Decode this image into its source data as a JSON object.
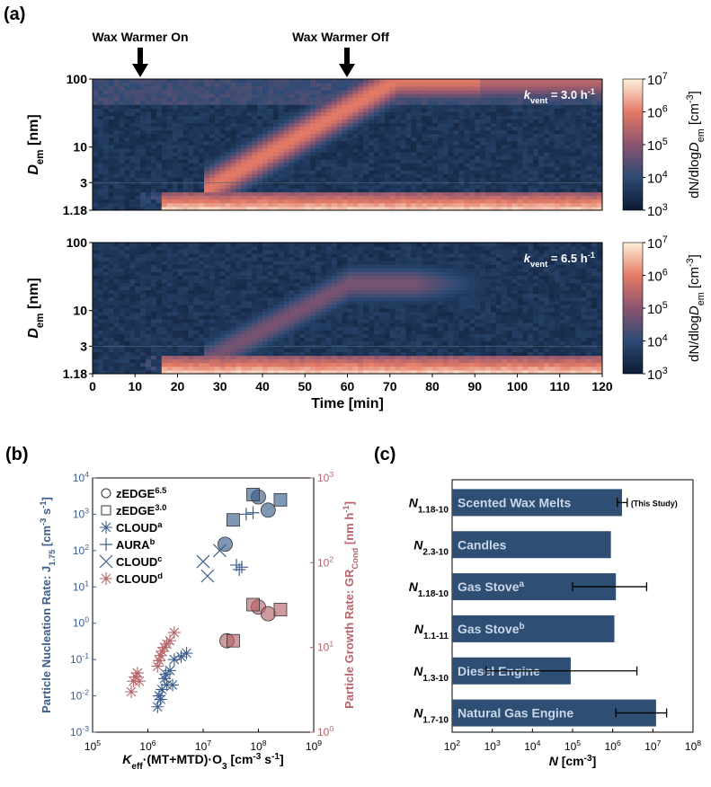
{
  "panel_labels": {
    "a": "(a)",
    "b": "(b)",
    "c": "(c)"
  },
  "annotations": {
    "on": "Wax Warmer On",
    "off": "Wax Warmer Off"
  },
  "colors": {
    "nucleation_blue": "#3b5e8c",
    "growth_red": "#b5656a",
    "bar_fill": "#2e4e73",
    "bar_label": "#c9d7e8"
  },
  "chart_data": [
    {
      "type": "heatmap",
      "panel": "a-top",
      "annotation": {
        "k": "k",
        "sub": "vent",
        "rest": " = 3.0 h",
        "sup": "-1"
      },
      "x": {
        "label": "Time [min]",
        "ticks": [
          0,
          10,
          20,
          30,
          40,
          50,
          60,
          70,
          80,
          90,
          100,
          110,
          120
        ],
        "range": [
          0,
          120
        ]
      },
      "y": {
        "label_main": "D",
        "label_sub": "em",
        "label_unit": "[nm]",
        "ticks": [
          "1.18",
          "3",
          "10",
          "100"
        ],
        "range": [
          1.18,
          100
        ],
        "scale": "log"
      },
      "colorbar": {
        "label_pre": "dN/dlog",
        "label_d": "D",
        "label_sub": "em",
        "label_unit": "[cm",
        "label_unit_sup": "-3",
        "label_unit_end": "]",
        "tick_exponents": [
          "3",
          "4",
          "5",
          "6",
          "7"
        ],
        "range": [
          1000,
          10000000
        ],
        "scale": "log"
      },
      "events_min": [
        11,
        60
      ],
      "kvent": 3.0
    },
    {
      "type": "heatmap",
      "panel": "a-bottom",
      "annotation": {
        "k": "k",
        "sub": "vent",
        "rest": " = 6.5 h",
        "sup": "-1"
      },
      "x": {
        "label": "Time [min]",
        "ticks": [
          0,
          10,
          20,
          30,
          40,
          50,
          60,
          70,
          80,
          90,
          100,
          110,
          120
        ],
        "range": [
          0,
          120
        ]
      },
      "y": {
        "label_main": "D",
        "label_sub": "em",
        "label_unit": "[nm]",
        "ticks": [
          "1.18",
          "3",
          "10",
          "100"
        ],
        "range": [
          1.18,
          100
        ],
        "scale": "log"
      },
      "colorbar": {
        "label_pre": "dN/dlog",
        "label_d": "D",
        "label_sub": "em",
        "label_unit": "[cm",
        "label_unit_sup": "-3",
        "label_unit_end": "]",
        "tick_exponents": [
          "3",
          "4",
          "5",
          "6",
          "7"
        ],
        "range": [
          1000,
          10000000
        ],
        "scale": "log"
      },
      "events_min": [
        11,
        60
      ],
      "kvent": 6.5
    },
    {
      "type": "scatter",
      "panel": "b",
      "xlabel": {
        "k": "K",
        "sub": "eff",
        "mid": "·(MT+MTD)·O",
        "sub2": "3",
        "unit": " [cm",
        "usup": "-3",
        "u2": " s",
        "usup2": "-1",
        "end": "]"
      },
      "ylabel_left": {
        "pre": "Particle Nucleation Rate: J",
        "sub": "1.75",
        "unit": " [cm",
        "usup": "-3",
        "u2": " s",
        "usup2": "-1",
        "end": "]"
      },
      "ylabel_right": {
        "pre": "Particle Growth Rate: GR",
        "sub": "Cond",
        "unit": " [nm h",
        "usup": "-1",
        "end": "]"
      },
      "xlim": [
        100000,
        1000000000
      ],
      "ylim_left": [
        0.001,
        10000
      ],
      "ylim_right": [
        1,
        1000
      ],
      "x_tick_exponents": [
        "5",
        "6",
        "7",
        "8",
        "9"
      ],
      "yl_tick_exponents": [
        "-3",
        "-2",
        "-1",
        "0",
        "1",
        "2",
        "3",
        "4"
      ],
      "yr_tick_exponents": [
        "0",
        "1",
        "2",
        "3"
      ],
      "legend": [
        {
          "symbol": "circle",
          "name": "zEDGE",
          "sup": "6.5"
        },
        {
          "symbol": "square",
          "name": "zEDGE",
          "sup": "3.0"
        },
        {
          "symbol": "asterisk",
          "name": "CLOUD",
          "sup": "a"
        },
        {
          "symbol": "plus",
          "name": "AURA",
          "sup": "b"
        },
        {
          "symbol": "cross",
          "name": "CLOUD",
          "sup": "c"
        },
        {
          "symbol": "asterisk-red",
          "name": "CLOUD",
          "sup": "d"
        }
      ],
      "series": [
        {
          "name": "zEDGE 6.5 J",
          "axis": "left",
          "symbol": "circle",
          "color": "#3b5e8c",
          "points": [
            [
              25000000,
              150
            ],
            [
              100000000,
              3000
            ],
            [
              150000000,
              1300
            ]
          ]
        },
        {
          "name": "zEDGE 3.0 J",
          "axis": "left",
          "symbol": "square",
          "color": "#3b5e8c",
          "points": [
            [
              35000000,
              700
            ],
            [
              80000000,
              3500
            ],
            [
              250000000,
              2500
            ]
          ]
        },
        {
          "name": "zEDGE 6.5 GR",
          "axis": "right",
          "symbol": "circle",
          "color": "#b5656a",
          "points": [
            [
              27000000,
              12
            ],
            [
              100000000,
              30
            ],
            [
              150000000,
              25
            ]
          ]
        },
        {
          "name": "zEDGE 3.0 GR",
          "axis": "right",
          "symbol": "square",
          "color": "#b5656a",
          "points": [
            [
              35000000,
              12
            ],
            [
              80000000,
              32
            ],
            [
              250000000,
              28
            ]
          ]
        },
        {
          "name": "CLOUDa",
          "axis": "left",
          "symbol": "asterisk",
          "color": "#3b5e8c",
          "points": [
            [
              1500000,
              0.005
            ],
            [
              1600000,
              0.01
            ],
            [
              1800000,
              0.015
            ],
            [
              2000000,
              0.03
            ],
            [
              2200000,
              0.02
            ],
            [
              2500000,
              0.05
            ],
            [
              3000000,
              0.1
            ],
            [
              4000000,
              0.12
            ],
            [
              5000000,
              0.15
            ],
            [
              1700000,
              0.008
            ],
            [
              2100000,
              0.04
            ],
            [
              2800000,
              0.02
            ]
          ]
        },
        {
          "name": "AURAb",
          "axis": "left",
          "symbol": "plus",
          "color": "#3b5e8c",
          "points": [
            [
              40000000,
              40
            ],
            [
              45000000,
              30
            ],
            [
              50000000,
              35
            ],
            [
              60000000,
              1000
            ],
            [
              80000000,
              1100
            ]
          ]
        },
        {
          "name": "CLOUDc",
          "axis": "left",
          "symbol": "cross",
          "color": "#3b5e8c",
          "points": [
            [
              10000000,
              50
            ],
            [
              12000000,
              20
            ],
            [
              20000000,
              100
            ]
          ]
        },
        {
          "name": "CLOUDd",
          "axis": "right",
          "symbol": "asterisk",
          "color": "#b5656a",
          "points": [
            [
              500000,
              3
            ],
            [
              550000,
              4
            ],
            [
              600000,
              4.5
            ],
            [
              650000,
              5
            ],
            [
              700000,
              4
            ],
            [
              1500000,
              6
            ],
            [
              1600000,
              7
            ],
            [
              1700000,
              8
            ],
            [
              1800000,
              9
            ],
            [
              2000000,
              10
            ],
            [
              2200000,
              11
            ],
            [
              2500000,
              12
            ],
            [
              3000000,
              15
            ]
          ]
        }
      ]
    },
    {
      "type": "bar",
      "panel": "c",
      "orientation": "horizontal",
      "xlabel": {
        "n": "N",
        "unit": " [cm",
        "usup": "-3",
        "end": "]"
      },
      "xlim": [
        100,
        100000000
      ],
      "x_tick_exponents": [
        "2",
        "3",
        "4",
        "5",
        "6",
        "7",
        "8"
      ],
      "this_study_note": "(This Study)",
      "bars": [
        {
          "tag": "N",
          "sub": "1.18-10",
          "label": "Scented Wax Melts",
          "sup": "",
          "value": 1700000,
          "err_low": 1300000,
          "err_high": 2300000
        },
        {
          "tag": "N",
          "sub": "2.3-10",
          "label": "Candles",
          "sup": "",
          "value": 900000,
          "err_low": null,
          "err_high": null
        },
        {
          "tag": "N",
          "sub": "1.18-10",
          "label": "Gas Stove",
          "sup": "a",
          "value": 1200000,
          "err_low": 100000,
          "err_high": 7000000
        },
        {
          "tag": "N",
          "sub": "1.1-11",
          "label": "Gas Stove",
          "sup": "b",
          "value": 1100000,
          "err_low": null,
          "err_high": null
        },
        {
          "tag": "N",
          "sub": "1.3-10",
          "label": "Diesel Engine",
          "sup": "",
          "value": 90000,
          "err_low": 700,
          "err_high": 4000000
        },
        {
          "tag": "N",
          "sub": "1.7-10",
          "label": "Natural Gas Engine",
          "sup": "",
          "value": 12000000,
          "err_low": 1200000,
          "err_high": 22000000
        }
      ]
    }
  ]
}
